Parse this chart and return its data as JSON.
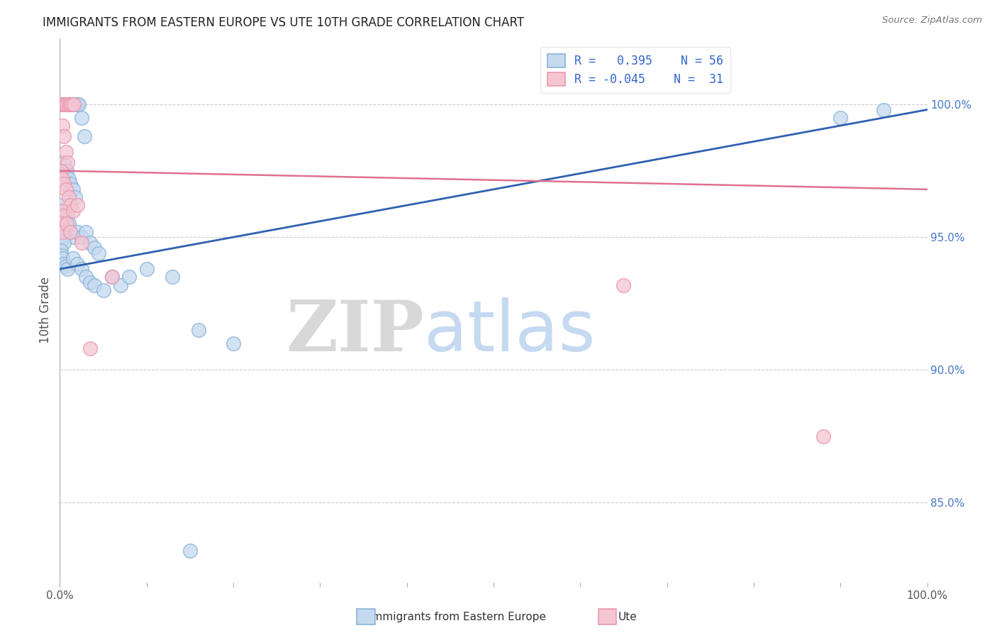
{
  "title": "IMMIGRANTS FROM EASTERN EUROPE VS UTE 10TH GRADE CORRELATION CHART",
  "source": "Source: ZipAtlas.com",
  "ylabel": "10th Grade",
  "right_yticks": [
    85.0,
    90.0,
    95.0,
    100.0
  ],
  "legend_blue_r": "R =   0.395",
  "legend_blue_n": "N = 56",
  "legend_pink_r": "R = -0.045",
  "legend_pink_n": "N =  31",
  "blue_fill": "#c5d9ef",
  "blue_edge": "#8ab4d8",
  "pink_fill": "#f5c5d2",
  "pink_edge": "#e899b0",
  "blue_line_color": "#3060b0",
  "pink_line_color": "#e07090",
  "blue_scatter": [
    [
      0.005,
      100.0
    ],
    [
      0.01,
      100.0
    ],
    [
      0.012,
      100.0
    ],
    [
      0.015,
      100.0
    ],
    [
      0.018,
      100.0
    ],
    [
      0.02,
      100.0
    ],
    [
      0.022,
      100.0
    ],
    [
      0.025,
      99.5
    ],
    [
      0.028,
      98.8
    ],
    [
      0.005,
      97.8
    ],
    [
      0.008,
      97.5
    ],
    [
      0.01,
      97.2
    ],
    [
      0.012,
      97.0
    ],
    [
      0.015,
      96.8
    ],
    [
      0.018,
      96.5
    ],
    [
      0.003,
      96.2
    ],
    [
      0.006,
      96.0
    ],
    [
      0.009,
      95.8
    ],
    [
      0.002,
      95.5
    ],
    [
      0.004,
      95.3
    ],
    [
      0.007,
      95.5
    ],
    [
      0.01,
      95.5
    ],
    [
      0.013,
      95.2
    ],
    [
      0.016,
      95.0
    ],
    [
      0.001,
      95.0
    ],
    [
      0.003,
      94.9
    ],
    [
      0.005,
      94.8
    ],
    [
      0.02,
      95.2
    ],
    [
      0.025,
      95.0
    ],
    [
      0.03,
      95.2
    ],
    [
      0.035,
      94.8
    ],
    [
      0.04,
      94.6
    ],
    [
      0.045,
      94.4
    ],
    [
      0.001,
      94.5
    ],
    [
      0.002,
      94.3
    ],
    [
      0.003,
      94.2
    ],
    [
      0.005,
      94.0
    ],
    [
      0.007,
      93.9
    ],
    [
      0.009,
      93.8
    ],
    [
      0.015,
      94.2
    ],
    [
      0.02,
      94.0
    ],
    [
      0.025,
      93.8
    ],
    [
      0.03,
      93.5
    ],
    [
      0.035,
      93.3
    ],
    [
      0.04,
      93.2
    ],
    [
      0.05,
      93.0
    ],
    [
      0.06,
      93.5
    ],
    [
      0.07,
      93.2
    ],
    [
      0.08,
      93.5
    ],
    [
      0.1,
      93.8
    ],
    [
      0.13,
      93.5
    ],
    [
      0.16,
      91.5
    ],
    [
      0.2,
      91.0
    ],
    [
      0.15,
      83.2
    ],
    [
      0.9,
      99.5
    ],
    [
      0.95,
      99.8
    ]
  ],
  "pink_scatter": [
    [
      0.002,
      100.0
    ],
    [
      0.004,
      100.0
    ],
    [
      0.006,
      100.0
    ],
    [
      0.008,
      100.0
    ],
    [
      0.01,
      100.0
    ],
    [
      0.012,
      100.0
    ],
    [
      0.014,
      100.0
    ],
    [
      0.016,
      100.0
    ],
    [
      0.003,
      99.2
    ],
    [
      0.005,
      98.8
    ],
    [
      0.007,
      98.2
    ],
    [
      0.009,
      97.8
    ],
    [
      0.001,
      97.5
    ],
    [
      0.003,
      97.2
    ],
    [
      0.005,
      97.0
    ],
    [
      0.007,
      96.8
    ],
    [
      0.01,
      96.5
    ],
    [
      0.012,
      96.2
    ],
    [
      0.002,
      96.0
    ],
    [
      0.004,
      95.8
    ],
    [
      0.015,
      96.0
    ],
    [
      0.02,
      96.2
    ],
    [
      0.001,
      95.5
    ],
    [
      0.003,
      95.2
    ],
    [
      0.008,
      95.5
    ],
    [
      0.012,
      95.2
    ],
    [
      0.025,
      94.8
    ],
    [
      0.035,
      90.8
    ],
    [
      0.06,
      93.5
    ],
    [
      0.65,
      93.2
    ],
    [
      0.88,
      87.5
    ]
  ],
  "xlim": [
    0.0,
    1.0
  ],
  "ylim": [
    82.0,
    102.5
  ],
  "blue_trend": [
    0.0,
    1.0,
    93.8,
    99.8
  ],
  "pink_trend": [
    0.0,
    1.0,
    97.5,
    96.8
  ]
}
